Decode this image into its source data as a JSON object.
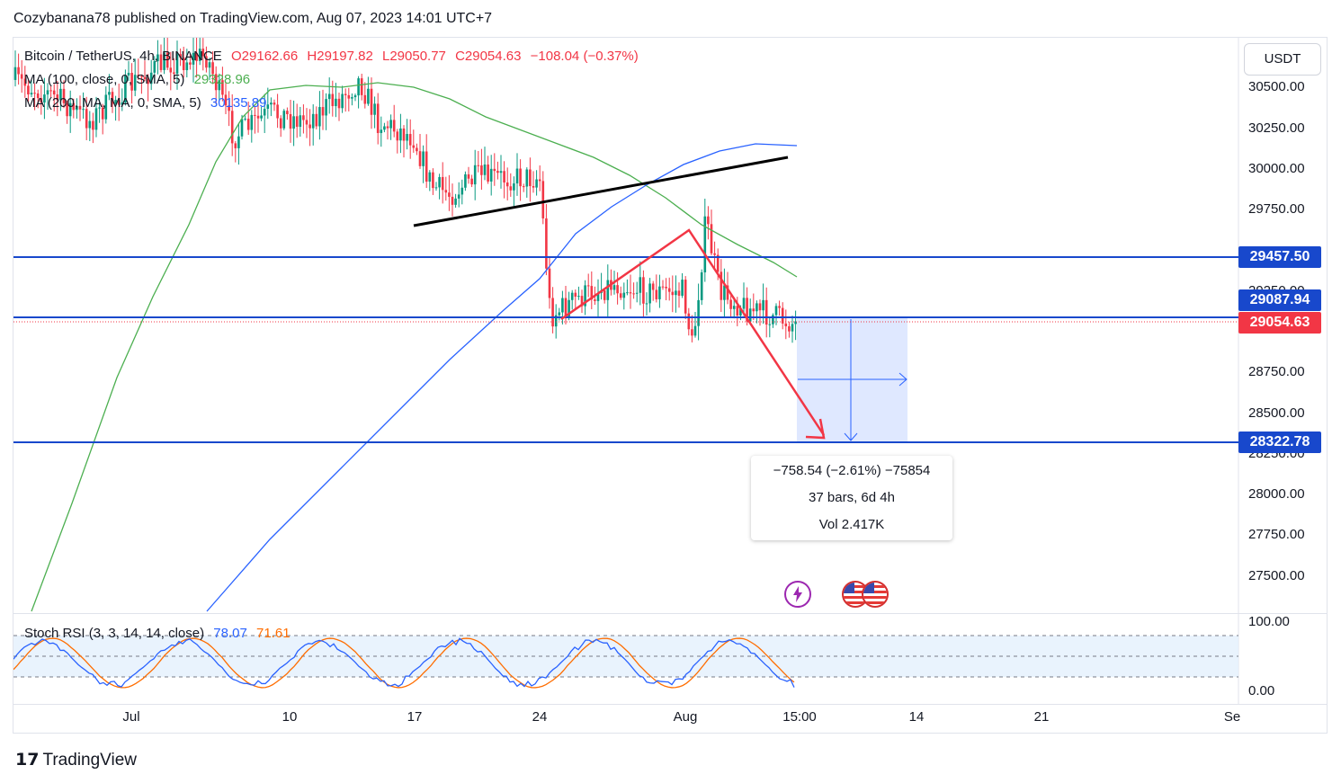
{
  "publisher_line": "Cozybanana78 published on TradingView.com, Aug 07, 2023 14:01 UTC+7",
  "legend": {
    "symbol": "Bitcoin / TetherUS, 4h, BINANCE",
    "open": "O29162.66",
    "high": "H29197.82",
    "low": "L29050.77",
    "close": "C29054.63",
    "change": "−108.04 (−0.37%)",
    "ma1_label": "MA (100, close, 0, SMA, 5)",
    "ma1_value": "29328.96",
    "ma2_label": "MA (200, MA, MA, 0, SMA, 5)",
    "ma2_value": "30135.89",
    "stoch_label": "Stoch RSI (3, 3, 14, 14, close)",
    "stoch_k": "78.07",
    "stoch_d": "71.61"
  },
  "currency": "USDT",
  "price_axis": [
    "30500.00",
    "30250.00",
    "30000.00",
    "29750.00",
    "29250.00",
    "28750.00",
    "28500.00",
    "28250.00",
    "28000.00",
    "27750.00",
    "27500.00"
  ],
  "osc_axis": [
    "100.00",
    "0.00"
  ],
  "time_axis": [
    "Jul",
    "10",
    "17",
    "24",
    "Aug",
    "15:00",
    "14",
    "21",
    "Se"
  ],
  "price_tags": {
    "resistance": "29457.50",
    "ma_tag": "29087.94",
    "last": "29054.63",
    "target": "28322.78"
  },
  "measure": {
    "line1": "−758.54 (−2.61%) −75854",
    "line2": "37 bars, 6d 4h",
    "line3": "Vol 2.417K"
  },
  "footer": "TradingView",
  "colors": {
    "up": "#089981",
    "down": "#f23645",
    "ma100": "#4caf50",
    "ma200": "#2962ff",
    "level_line": "#1848cc",
    "last_tag": "#f23645",
    "level_tag": "#1848cc",
    "stoch_k": "#2962ff",
    "stoch_d": "#ff6d00"
  },
  "icons": {
    "event1": "lightning-icon",
    "event2": "us-flag-icon"
  },
  "chart_data": {
    "type": "candlestick",
    "symbol": "Bitcoin / TetherUS",
    "timeframe": "4h",
    "exchange": "BINANCE",
    "ylim": [
      27400,
      30700
    ],
    "series": [
      {
        "name": "MA (100, close, 0, SMA, 5)",
        "last": 29328.96
      },
      {
        "name": "MA (200, MA, MA, 0, SMA, 5)",
        "last": 30135.89
      }
    ],
    "horizontal_levels": [
      29457.5,
      29087.94,
      28322.78
    ],
    "last_price": 29054.63,
    "measurement": {
      "change": -758.54,
      "change_pct": -2.61,
      "bars": 37,
      "duration": "6d 4h",
      "volume": "2.417K"
    },
    "oscillator": {
      "name": "Stoch RSI (3, 3, 14, 14, close)",
      "k": 78.07,
      "d": 71.61,
      "range": [
        0,
        100
      ]
    }
  }
}
